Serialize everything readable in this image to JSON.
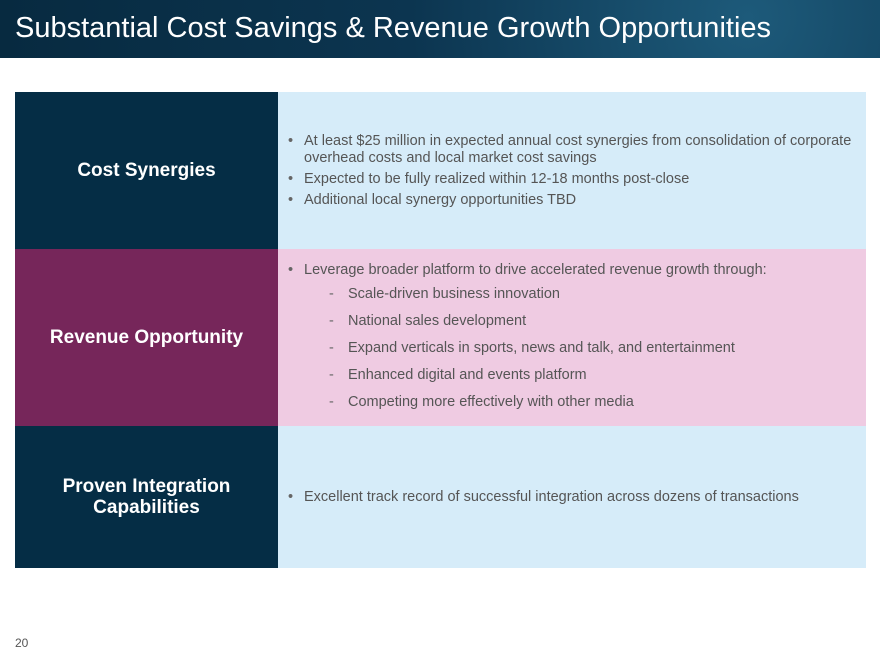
{
  "header": {
    "title": "Substantial Cost Savings & Revenue Growth Opportunities"
  },
  "rows": [
    {
      "label": "Cost Synergies",
      "bullets": [
        {
          "text": "At least $25 million in expected annual cost synergies from consolidation of corporate overhead costs and local market cost savings",
          "subs": []
        },
        {
          "text": "Expected to be fully realized within 12-18 months post-close",
          "subs": []
        },
        {
          "text": "Additional local synergy opportunities TBD",
          "subs": []
        }
      ]
    },
    {
      "label": "Revenue Opportunity",
      "bullets": [
        {
          "text": "Leverage broader platform to drive accelerated revenue growth through:",
          "subs": [
            "Scale-driven business innovation",
            "National sales development",
            "Expand verticals in sports, news and talk, and entertainment",
            "Enhanced digital and events platform",
            "Competing more effectively with other media"
          ]
        }
      ]
    },
    {
      "label": "Proven Integration Capabilities",
      "bullets": [
        {
          "text": "Excellent track record of successful integration across dozens of transactions",
          "subs": []
        }
      ]
    }
  ],
  "page_number": "20"
}
